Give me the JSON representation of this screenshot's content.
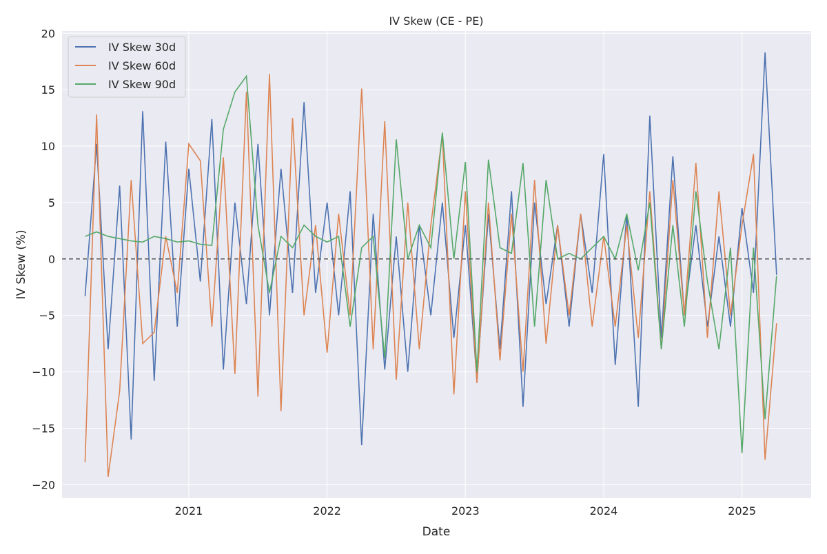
{
  "chart_data": {
    "type": "line",
    "title": "IV Skew (CE - PE)",
    "xlabel": "Date",
    "ylabel": "IV Skew (%)",
    "ylim": [
      -21.2,
      20.2
    ],
    "xlim": [
      "2020-02",
      "2025-07"
    ],
    "yticks": [
      -20,
      -15,
      -10,
      -5,
      0,
      5,
      10,
      15,
      20
    ],
    "ytick_labels": [
      "−20",
      "−15",
      "−10",
      "−5",
      "0",
      "5",
      "10",
      "15",
      "20"
    ],
    "xticks": [
      "2021",
      "2022",
      "2023",
      "2024",
      "2025"
    ],
    "grid": true,
    "legend_position": "top-left",
    "reference_line": {
      "y": 0,
      "style": "dashed",
      "color": "#555555"
    },
    "x": [
      "2020-04",
      "2020-05",
      "2020-06",
      "2020-07",
      "2020-08",
      "2020-09",
      "2020-10",
      "2020-11",
      "2020-12",
      "2021-01",
      "2021-02",
      "2021-03",
      "2021-04",
      "2021-05",
      "2021-06",
      "2021-07",
      "2021-08",
      "2021-09",
      "2021-10",
      "2021-11",
      "2021-12",
      "2022-01",
      "2022-02",
      "2022-03",
      "2022-04",
      "2022-05",
      "2022-06",
      "2022-07",
      "2022-08",
      "2022-09",
      "2022-10",
      "2022-11",
      "2022-12",
      "2023-01",
      "2023-02",
      "2023-03",
      "2023-04",
      "2023-05",
      "2023-06",
      "2023-07",
      "2023-08",
      "2023-09",
      "2023-10",
      "2023-11",
      "2023-12",
      "2024-01",
      "2024-02",
      "2024-03",
      "2024-04",
      "2024-05",
      "2024-06",
      "2024-07",
      "2024-08",
      "2024-09",
      "2024-10",
      "2024-11",
      "2024-12",
      "2025-01",
      "2025-02",
      "2025-03",
      "2025-04"
    ],
    "series": [
      {
        "name": "IV Skew 30d",
        "color": "#4c72b0",
        "values": [
          -3.3,
          10.2,
          -8,
          6.5,
          -16,
          13.1,
          -10.8,
          10.4,
          -6,
          8,
          -2,
          12.4,
          -9.8,
          5,
          -4,
          10.2,
          -5,
          8,
          -3,
          13.9,
          -3,
          5,
          -5,
          6,
          -16.5,
          4,
          -9.8,
          2,
          -10,
          3,
          -5,
          5,
          -7,
          3,
          -10.8,
          4,
          -8,
          6,
          -13.1,
          5,
          -4,
          3,
          -6,
          4,
          -3,
          9.3,
          -9.4,
          4,
          -13.1,
          12.7,
          -7,
          9.1,
          -5,
          3,
          -6,
          2,
          -6,
          4.5,
          -3,
          18.3,
          -1.4
        ]
      },
      {
        "name": "IV Skew 60d",
        "color": "#dd8452",
        "values": [
          -18,
          12.8,
          -19.3,
          -11.7,
          7,
          -7.5,
          -6.5,
          2,
          -3,
          10.2,
          8.7,
          -6,
          9,
          -10.2,
          14.8,
          -12.2,
          16.4,
          -13.5,
          12.5,
          -5,
          3,
          -8.3,
          4,
          -5,
          15.1,
          -8,
          12.2,
          -10.7,
          5,
          -8,
          3,
          11,
          -12,
          6,
          -11,
          5,
          -9,
          4,
          -10,
          7,
          -7.5,
          3,
          -5,
          4,
          -6,
          2,
          -6,
          3,
          -7,
          6,
          -8,
          7,
          -5,
          8.5,
          -7,
          6,
          -5,
          3,
          9.3,
          -17.8,
          -5.7
        ]
      },
      {
        "name": "IV Skew 90d",
        "color": "#55a868",
        "values": [
          2,
          2.4,
          2,
          1.8,
          1.6,
          1.5,
          2,
          1.8,
          1.5,
          1.6,
          1.3,
          1.2,
          11.5,
          14.8,
          16.2,
          3,
          -3,
          2,
          1,
          3,
          2,
          1.5,
          2,
          -6,
          1,
          2,
          -8.8,
          10.6,
          0,
          3,
          1,
          11.2,
          0,
          8.6,
          -10,
          8.8,
          1,
          0.5,
          8.5,
          -6,
          7,
          0,
          0.5,
          0,
          1,
          2,
          0,
          4,
          -1,
          5,
          -8,
          3,
          -6,
          6,
          -2,
          -8,
          1,
          -17.2,
          1,
          -14.2,
          -1.5
        ]
      }
    ]
  }
}
